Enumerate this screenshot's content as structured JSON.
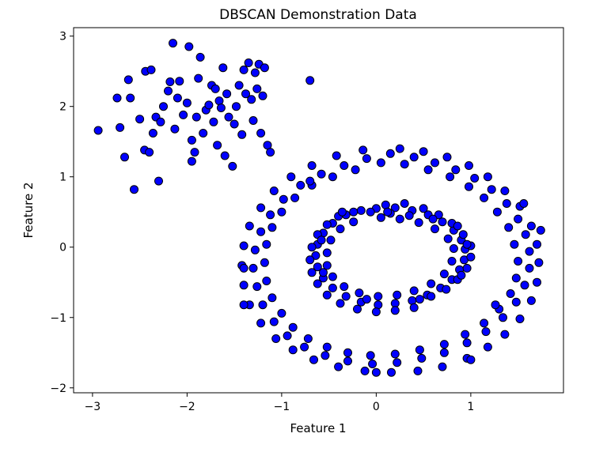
{
  "chart_data": {
    "type": "scatter",
    "title": "DBSCAN Demonstration Data",
    "xlabel": "Feature 1",
    "ylabel": "Feature 2",
    "xlim": [
      -3.2,
      1.98
    ],
    "ylim": [
      -2.07,
      3.12
    ],
    "xticks": [
      -3,
      -2,
      -1,
      0,
      1
    ],
    "xtick_labels": [
      "−3",
      "−2",
      "−1",
      "0",
      "1"
    ],
    "yticks": [
      -2,
      -1,
      0,
      1,
      2,
      3
    ],
    "ytick_labels": [
      "−2",
      "−1",
      "0",
      "1",
      "2",
      "3"
    ],
    "grid": false,
    "legend": "none",
    "marker_color": "#0000ff",
    "marker_edge_color": "#000000",
    "series": [
      {
        "points": [
          [
            -2.94,
            1.66
          ],
          [
            -2.74,
            2.12
          ],
          [
            -2.71,
            1.7
          ],
          [
            -2.66,
            1.28
          ],
          [
            -2.62,
            2.38
          ],
          [
            -2.6,
            2.12
          ],
          [
            -2.56,
            0.82
          ],
          [
            -2.5,
            1.82
          ],
          [
            -2.45,
            1.38
          ],
          [
            -2.44,
            2.5
          ],
          [
            -2.4,
            1.35
          ],
          [
            -2.38,
            2.52
          ],
          [
            -2.36,
            1.62
          ],
          [
            -2.33,
            1.85
          ],
          [
            -2.3,
            0.94
          ],
          [
            -2.28,
            1.78
          ],
          [
            -2.25,
            2.0
          ],
          [
            -2.2,
            2.22
          ],
          [
            -2.18,
            2.35
          ],
          [
            -2.15,
            2.9
          ],
          [
            -2.13,
            1.68
          ],
          [
            -2.1,
            2.12
          ],
          [
            -2.08,
            2.36
          ],
          [
            -2.04,
            1.88
          ],
          [
            -2.0,
            2.05
          ],
          [
            -1.98,
            2.85
          ],
          [
            -1.95,
            1.52
          ],
          [
            -1.95,
            1.22
          ],
          [
            -1.92,
            1.35
          ],
          [
            -1.9,
            1.85
          ],
          [
            -1.88,
            2.4
          ],
          [
            -1.86,
            2.7
          ],
          [
            -1.83,
            1.62
          ],
          [
            -1.8,
            1.95
          ],
          [
            -1.77,
            2.02
          ],
          [
            -1.74,
            2.3
          ],
          [
            -1.72,
            1.78
          ],
          [
            -1.7,
            2.25
          ],
          [
            -1.68,
            1.45
          ],
          [
            -1.66,
            2.08
          ],
          [
            -1.64,
            1.98
          ],
          [
            -1.62,
            2.55
          ],
          [
            -1.6,
            1.3
          ],
          [
            -1.58,
            2.18
          ],
          [
            -1.56,
            1.85
          ],
          [
            -1.52,
            1.15
          ],
          [
            -1.5,
            1.75
          ],
          [
            -1.48,
            2.0
          ],
          [
            -1.45,
            2.3
          ],
          [
            -1.42,
            1.6
          ],
          [
            -1.4,
            2.52
          ],
          [
            -1.38,
            2.18
          ],
          [
            -1.35,
            2.62
          ],
          [
            -1.32,
            2.1
          ],
          [
            -1.3,
            1.8
          ],
          [
            -1.28,
            2.48
          ],
          [
            -1.26,
            2.25
          ],
          [
            -1.24,
            2.6
          ],
          [
            -1.22,
            1.62
          ],
          [
            -1.2,
            2.15
          ],
          [
            -1.18,
            2.55
          ],
          [
            -1.15,
            1.45
          ],
          [
            -1.12,
            1.35
          ],
          [
            -0.7,
            2.37
          ],
          [
            0.0,
            0.55
          ],
          [
            0.2,
            0.56
          ],
          [
            0.38,
            0.52
          ],
          [
            0.55,
            0.46
          ],
          [
            0.7,
            0.36
          ],
          [
            0.82,
            0.24
          ],
          [
            0.9,
            0.1
          ],
          [
            0.94,
            -0.03
          ],
          [
            0.93,
            -0.18
          ],
          [
            0.88,
            -0.32
          ],
          [
            0.8,
            -0.46
          ],
          [
            0.68,
            -0.58
          ],
          [
            0.54,
            -0.68
          ],
          [
            0.38,
            -0.76
          ],
          [
            0.2,
            -0.8
          ],
          [
            0.02,
            -0.82
          ],
          [
            -0.16,
            -0.78
          ],
          [
            -0.32,
            -0.7
          ],
          [
            -0.46,
            -0.58
          ],
          [
            -0.56,
            -0.44
          ],
          [
            -0.62,
            -0.28
          ],
          [
            -0.64,
            -0.12
          ],
          [
            -0.62,
            0.04
          ],
          [
            -0.56,
            0.2
          ],
          [
            -0.46,
            0.34
          ],
          [
            -0.32,
            0.46
          ],
          [
            -0.16,
            0.52
          ],
          [
            0.05,
            0.42
          ],
          [
            0.25,
            0.4
          ],
          [
            0.45,
            0.35
          ],
          [
            0.62,
            0.26
          ],
          [
            0.76,
            0.12
          ],
          [
            0.82,
            -0.02
          ],
          [
            0.8,
            -0.2
          ],
          [
            0.72,
            -0.38
          ],
          [
            0.58,
            -0.52
          ],
          [
            0.4,
            -0.62
          ],
          [
            0.22,
            -0.68
          ],
          [
            0.02,
            -0.7
          ],
          [
            -0.18,
            -0.65
          ],
          [
            -0.34,
            -0.56
          ],
          [
            -0.46,
            -0.42
          ],
          [
            -0.52,
            -0.26
          ],
          [
            -0.52,
            -0.08
          ],
          [
            -0.48,
            0.1
          ],
          [
            -0.38,
            0.26
          ],
          [
            -0.24,
            0.36
          ],
          [
            0.1,
            0.6
          ],
          [
            0.3,
            0.62
          ],
          [
            0.5,
            0.55
          ],
          [
            0.66,
            0.46
          ],
          [
            0.8,
            0.34
          ],
          [
            0.92,
            0.18
          ],
          [
            1.0,
            0.02
          ],
          [
            1.0,
            -0.14
          ],
          [
            0.96,
            -0.3
          ],
          [
            0.86,
            -0.46
          ],
          [
            0.74,
            -0.6
          ],
          [
            0.58,
            -0.7
          ],
          [
            0.4,
            -0.86
          ],
          [
            0.2,
            -0.9
          ],
          [
            0.0,
            -0.92
          ],
          [
            -0.2,
            -0.88
          ],
          [
            -0.38,
            -0.8
          ],
          [
            -0.52,
            -0.68
          ],
          [
            -0.62,
            -0.52
          ],
          [
            -0.68,
            -0.36
          ],
          [
            -0.7,
            -0.18
          ],
          [
            -0.68,
            0.0
          ],
          [
            -0.62,
            0.18
          ],
          [
            -0.52,
            0.32
          ],
          [
            -0.4,
            0.44
          ],
          [
            -0.24,
            0.5
          ],
          [
            -0.06,
            0.5
          ],
          [
            0.15,
            0.48
          ],
          [
            0.35,
            0.45
          ],
          [
            0.6,
            0.4
          ],
          [
            0.86,
            0.3
          ],
          [
            0.96,
            0.04
          ],
          [
            0.9,
            -0.4
          ],
          [
            0.46,
            -0.74
          ],
          [
            -0.1,
            -0.74
          ],
          [
            -0.56,
            -0.36
          ],
          [
            -0.58,
            0.1
          ],
          [
            -0.36,
            0.5
          ],
          [
            0.12,
            0.5
          ],
          [
            0.15,
            1.33
          ],
          [
            0.4,
            1.28
          ],
          [
            0.62,
            1.2
          ],
          [
            0.84,
            1.1
          ],
          [
            1.04,
            0.98
          ],
          [
            1.22,
            0.82
          ],
          [
            1.38,
            0.62
          ],
          [
            1.5,
            0.4
          ],
          [
            1.58,
            0.18
          ],
          [
            1.62,
            -0.06
          ],
          [
            1.62,
            -0.3
          ],
          [
            1.57,
            -0.54
          ],
          [
            1.48,
            -0.78
          ],
          [
            1.34,
            -1.0
          ],
          [
            1.16,
            -1.2
          ],
          [
            0.96,
            -1.36
          ],
          [
            0.72,
            -1.5
          ],
          [
            0.48,
            -1.58
          ],
          [
            0.22,
            -1.64
          ],
          [
            -0.04,
            -1.66
          ],
          [
            -0.3,
            -1.62
          ],
          [
            -0.54,
            -1.54
          ],
          [
            -0.76,
            -1.42
          ],
          [
            -0.94,
            -1.26
          ],
          [
            -1.08,
            -1.06
          ],
          [
            -1.2,
            -0.82
          ],
          [
            -1.26,
            -0.56
          ],
          [
            -1.3,
            -0.3
          ],
          [
            -1.28,
            -0.04
          ],
          [
            -1.22,
            0.22
          ],
          [
            -1.12,
            0.46
          ],
          [
            -0.98,
            0.68
          ],
          [
            -0.8,
            0.88
          ],
          [
            -0.58,
            1.04
          ],
          [
            -0.34,
            1.16
          ],
          [
            -0.1,
            1.26
          ],
          [
            0.05,
            1.2
          ],
          [
            0.3,
            1.18
          ],
          [
            0.55,
            1.1
          ],
          [
            0.78,
            1.0
          ],
          [
            0.98,
            0.86
          ],
          [
            1.14,
            0.7
          ],
          [
            1.28,
            0.5
          ],
          [
            1.4,
            0.28
          ],
          [
            1.46,
            0.04
          ],
          [
            1.5,
            -0.2
          ],
          [
            1.48,
            -0.44
          ],
          [
            1.42,
            -0.66
          ],
          [
            1.3,
            -0.88
          ],
          [
            1.14,
            -1.08
          ],
          [
            0.94,
            -1.24
          ],
          [
            0.72,
            -1.38
          ],
          [
            0.46,
            -1.46
          ],
          [
            0.2,
            -1.52
          ],
          [
            -0.06,
            -1.54
          ],
          [
            -0.3,
            -1.5
          ],
          [
            -0.52,
            -1.42
          ],
          [
            -0.72,
            -1.3
          ],
          [
            -0.88,
            -1.14
          ],
          [
            -1.0,
            -0.94
          ],
          [
            -1.1,
            -0.72
          ],
          [
            -1.16,
            -0.48
          ],
          [
            -1.18,
            -0.22
          ],
          [
            -1.16,
            0.04
          ],
          [
            -1.1,
            0.28
          ],
          [
            -1.0,
            0.5
          ],
          [
            -0.86,
            0.7
          ],
          [
            -0.68,
            0.88
          ],
          [
            -0.46,
            1.0
          ],
          [
            -0.22,
            1.1
          ],
          [
            0.25,
            1.4
          ],
          [
            0.5,
            1.36
          ],
          [
            0.75,
            1.28
          ],
          [
            0.98,
            1.16
          ],
          [
            1.18,
            1.0
          ],
          [
            1.36,
            0.8
          ],
          [
            1.52,
            0.58
          ],
          [
            1.64,
            0.3
          ],
          [
            1.7,
            0.04
          ],
          [
            1.72,
            -0.22
          ],
          [
            1.7,
            -0.5
          ],
          [
            1.64,
            -0.76
          ],
          [
            1.52,
            -1.02
          ],
          [
            1.36,
            -1.24
          ],
          [
            1.18,
            -1.42
          ],
          [
            0.96,
            -1.58
          ],
          [
            0.7,
            -1.7
          ],
          [
            0.44,
            -1.76
          ],
          [
            0.16,
            -1.78
          ],
          [
            -0.12,
            -1.76
          ],
          [
            -0.4,
            -1.7
          ],
          [
            -0.66,
            -1.6
          ],
          [
            -0.88,
            -1.46
          ],
          [
            -1.06,
            -1.3
          ],
          [
            -1.22,
            -1.08
          ],
          [
            -1.34,
            -0.82
          ],
          [
            -1.4,
            -0.54
          ],
          [
            -1.42,
            -0.26
          ],
          [
            -1.4,
            0.02
          ],
          [
            -1.34,
            0.3
          ],
          [
            -1.22,
            0.56
          ],
          [
            -1.08,
            0.8
          ],
          [
            -0.9,
            1.0
          ],
          [
            -0.68,
            1.16
          ],
          [
            -0.42,
            1.3
          ],
          [
            -0.14,
            1.38
          ],
          [
            1.74,
            0.24
          ],
          [
            1.56,
            0.62
          ],
          [
            1.0,
            -1.6
          ],
          [
            1.26,
            -0.82
          ],
          [
            -1.4,
            -0.3
          ],
          [
            -0.7,
            0.94
          ],
          [
            -1.4,
            -0.82
          ],
          [
            0.0,
            -1.78
          ]
        ]
      }
    ]
  }
}
